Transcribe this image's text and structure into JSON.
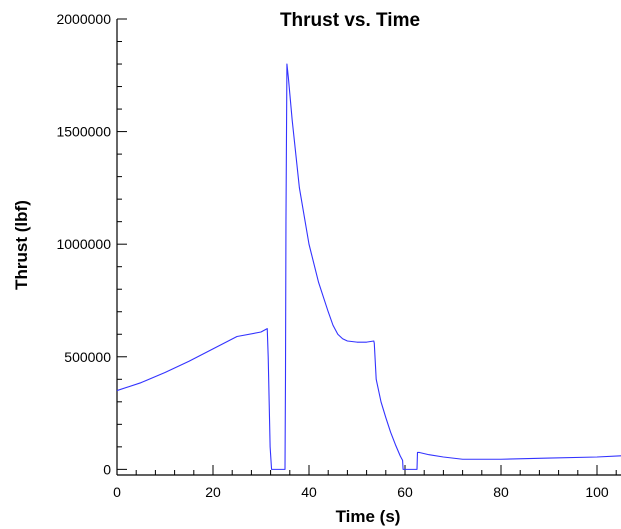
{
  "chart_data": {
    "type": "line",
    "title": "Thrust vs. Time",
    "xlabel": "Time (s)",
    "ylabel": "Thrust (lbf)",
    "xlim": [
      0,
      105
    ],
    "ylim": [
      -25000,
      2000000
    ],
    "x_ticks": [
      0,
      20,
      40,
      60,
      80,
      100
    ],
    "y_ticks": [
      0,
      500000,
      1000000,
      1500000,
      2000000
    ],
    "x_tick_labels": [
      "0",
      "20",
      "40",
      "60",
      "80",
      "100"
    ],
    "y_tick_labels": [
      "0",
      "500000",
      "1000000",
      "1500000",
      "2000000"
    ],
    "grid": false,
    "legend": "none",
    "colors": {
      "series": "#3333ff",
      "axes": "#000000"
    },
    "series": [
      {
        "x": [
          0,
          5,
          10,
          15,
          20,
          25,
          30,
          31.3,
          31.5,
          31.7,
          31.9,
          32.2,
          35,
          35.1,
          35.2,
          35.4,
          35.7,
          36.5,
          38,
          40,
          42,
          44,
          45,
          46,
          47,
          48,
          50,
          52,
          53.5,
          53.6,
          54,
          55,
          56,
          57,
          58,
          59,
          59.5,
          59.6,
          62.5,
          62.6,
          63,
          65,
          68,
          72,
          80,
          90,
          100,
          105
        ],
        "y": [
          350000,
          385000,
          430000,
          480000,
          535000,
          590000,
          610000,
          625000,
          500000,
          300000,
          100000,
          0,
          0,
          400000,
          1100000,
          1800000,
          1740000,
          1550000,
          1250000,
          1000000,
          830000,
          700000,
          640000,
          600000,
          580000,
          570000,
          565000,
          565000,
          570000,
          560000,
          400000,
          300000,
          230000,
          165000,
          110000,
          60000,
          40000,
          0,
          0,
          75000,
          75000,
          65000,
          55000,
          45000,
          45000,
          50000,
          55000,
          60000
        ]
      }
    ]
  }
}
